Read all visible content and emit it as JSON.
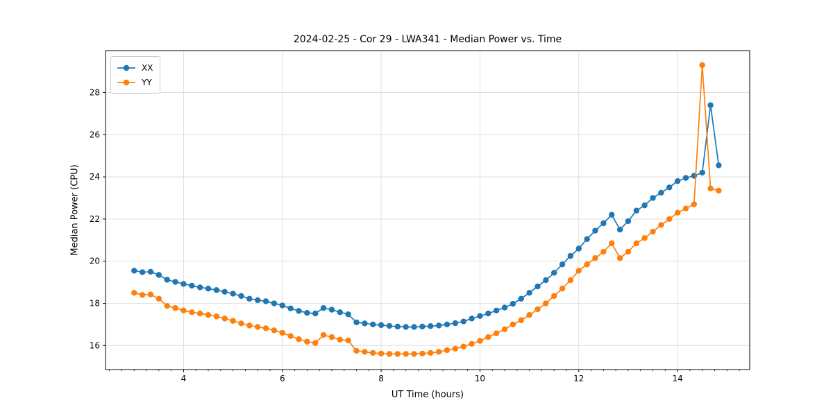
{
  "figure": {
    "title": "2024-02-25 - Cor 29 - LWA341 - Median Power vs. Time",
    "xlabel": "UT Time (hours)",
    "ylabel": "Median Power (CPU)"
  },
  "colors": {
    "xx": "#1f77b4",
    "yy": "#ff7f0e",
    "grid": "#dcdcdc",
    "spine": "#000000"
  },
  "chart_data": {
    "type": "line",
    "title": "2024-02-25 - Cor 29 - LWA341 - Median Power vs. Time",
    "xlabel": "UT Time (hours)",
    "ylabel": "Median Power (CPU)",
    "grid": true,
    "legend_position": "upper left",
    "marker": "o",
    "xlim": [
      2.42,
      15.46
    ],
    "ylim": [
      14.86,
      29.99
    ],
    "xticks": [
      4,
      6,
      8,
      10,
      12,
      14
    ],
    "yticks": [
      16,
      18,
      20,
      22,
      24,
      26,
      28
    ],
    "x_minor_step": 0.25,
    "x": [
      3.0,
      3.167,
      3.333,
      3.5,
      3.667,
      3.833,
      4.0,
      4.167,
      4.333,
      4.5,
      4.667,
      4.833,
      5.0,
      5.167,
      5.333,
      5.5,
      5.667,
      5.833,
      6.0,
      6.167,
      6.333,
      6.5,
      6.667,
      6.833,
      7.0,
      7.167,
      7.333,
      7.5,
      7.667,
      7.833,
      8.0,
      8.167,
      8.333,
      8.5,
      8.667,
      8.833,
      9.0,
      9.167,
      9.333,
      9.5,
      9.667,
      9.833,
      10.0,
      10.167,
      10.333,
      10.5,
      10.667,
      10.833,
      11.0,
      11.167,
      11.333,
      11.5,
      11.667,
      11.833,
      12.0,
      12.167,
      12.333,
      12.5,
      12.667,
      12.833,
      13.0,
      13.167,
      13.333,
      13.5,
      13.667,
      13.833,
      14.0,
      14.167,
      14.333,
      14.5,
      14.667,
      14.833
    ],
    "series": [
      {
        "name": "XX",
        "color": "#1f77b4",
        "values": [
          19.55,
          19.48,
          19.5,
          19.35,
          19.12,
          19.02,
          18.92,
          18.84,
          18.76,
          18.7,
          18.63,
          18.55,
          18.46,
          18.35,
          18.22,
          18.15,
          18.1,
          18.0,
          17.9,
          17.76,
          17.64,
          17.55,
          17.52,
          17.78,
          17.7,
          17.58,
          17.48,
          17.1,
          17.05,
          17.0,
          16.97,
          16.93,
          16.9,
          16.88,
          16.88,
          16.9,
          16.92,
          16.95,
          17.0,
          17.06,
          17.14,
          17.28,
          17.4,
          17.52,
          17.66,
          17.8,
          17.98,
          18.22,
          18.5,
          18.8,
          19.1,
          19.45,
          19.85,
          20.25,
          20.6,
          21.05,
          21.45,
          21.8,
          22.2,
          21.5,
          21.9,
          22.4,
          22.65,
          23.0,
          23.25,
          23.5,
          23.8,
          23.95,
          24.05,
          24.2,
          27.4,
          24.55
        ]
      },
      {
        "name": "YY",
        "color": "#ff7f0e",
        "values": [
          18.5,
          18.4,
          18.42,
          18.22,
          17.88,
          17.78,
          17.66,
          17.58,
          17.52,
          17.45,
          17.38,
          17.28,
          17.17,
          17.05,
          16.95,
          16.88,
          16.82,
          16.72,
          16.6,
          16.45,
          16.3,
          16.18,
          16.12,
          16.5,
          16.4,
          16.28,
          16.24,
          15.75,
          15.7,
          15.65,
          15.62,
          15.6,
          15.6,
          15.6,
          15.6,
          15.62,
          15.65,
          15.7,
          15.78,
          15.85,
          15.95,
          16.08,
          16.22,
          16.4,
          16.58,
          16.77,
          17.0,
          17.2,
          17.45,
          17.72,
          18.0,
          18.35,
          18.7,
          19.1,
          19.55,
          19.85,
          20.15,
          20.45,
          20.85,
          20.15,
          20.45,
          20.85,
          21.1,
          21.4,
          21.72,
          22.0,
          22.3,
          22.5,
          22.7,
          29.3,
          23.45,
          23.35
        ]
      }
    ]
  }
}
